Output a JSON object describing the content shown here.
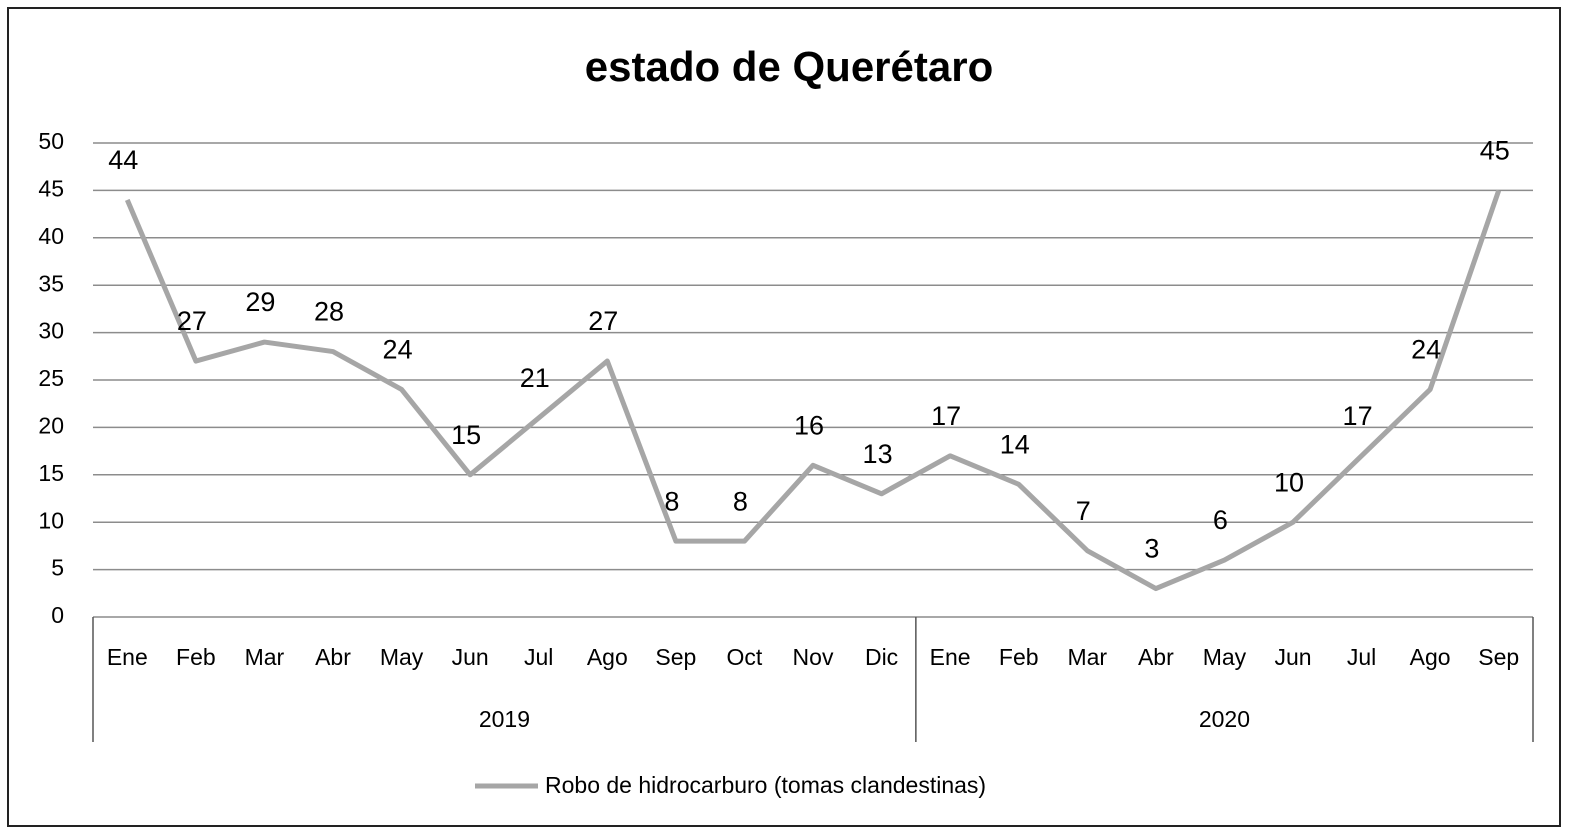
{
  "chart_data": {
    "type": "line",
    "title": "estado de Querétaro",
    "categories": [
      "Ene",
      "Feb",
      "Mar",
      "Abr",
      "May",
      "Jun",
      "Jul",
      "Ago",
      "Sep",
      "Oct",
      "Nov",
      "Dic",
      "Ene",
      "Feb",
      "Mar",
      "Abr",
      "May",
      "Jun",
      "Jul",
      "Ago",
      "Sep"
    ],
    "years": [
      "2019",
      null,
      null,
      null,
      null,
      null,
      null,
      null,
      null,
      null,
      null,
      null,
      "2020",
      null,
      null,
      null,
      null,
      null,
      null,
      null,
      null
    ],
    "series": [
      {
        "name": "Robo de hidrocarburo (tomas clandestinas)",
        "color": "#a6a6a6",
        "values": [
          44,
          27,
          29,
          28,
          24,
          15,
          21,
          27,
          8,
          8,
          16,
          13,
          17,
          14,
          7,
          3,
          6,
          10,
          17,
          24,
          45
        ]
      }
    ],
    "ylim": [
      0,
      50
    ],
    "yticks": [
      0,
      5,
      10,
      15,
      20,
      25,
      30,
      35,
      40,
      45,
      50
    ],
    "grid": true,
    "legend": "bottom"
  }
}
